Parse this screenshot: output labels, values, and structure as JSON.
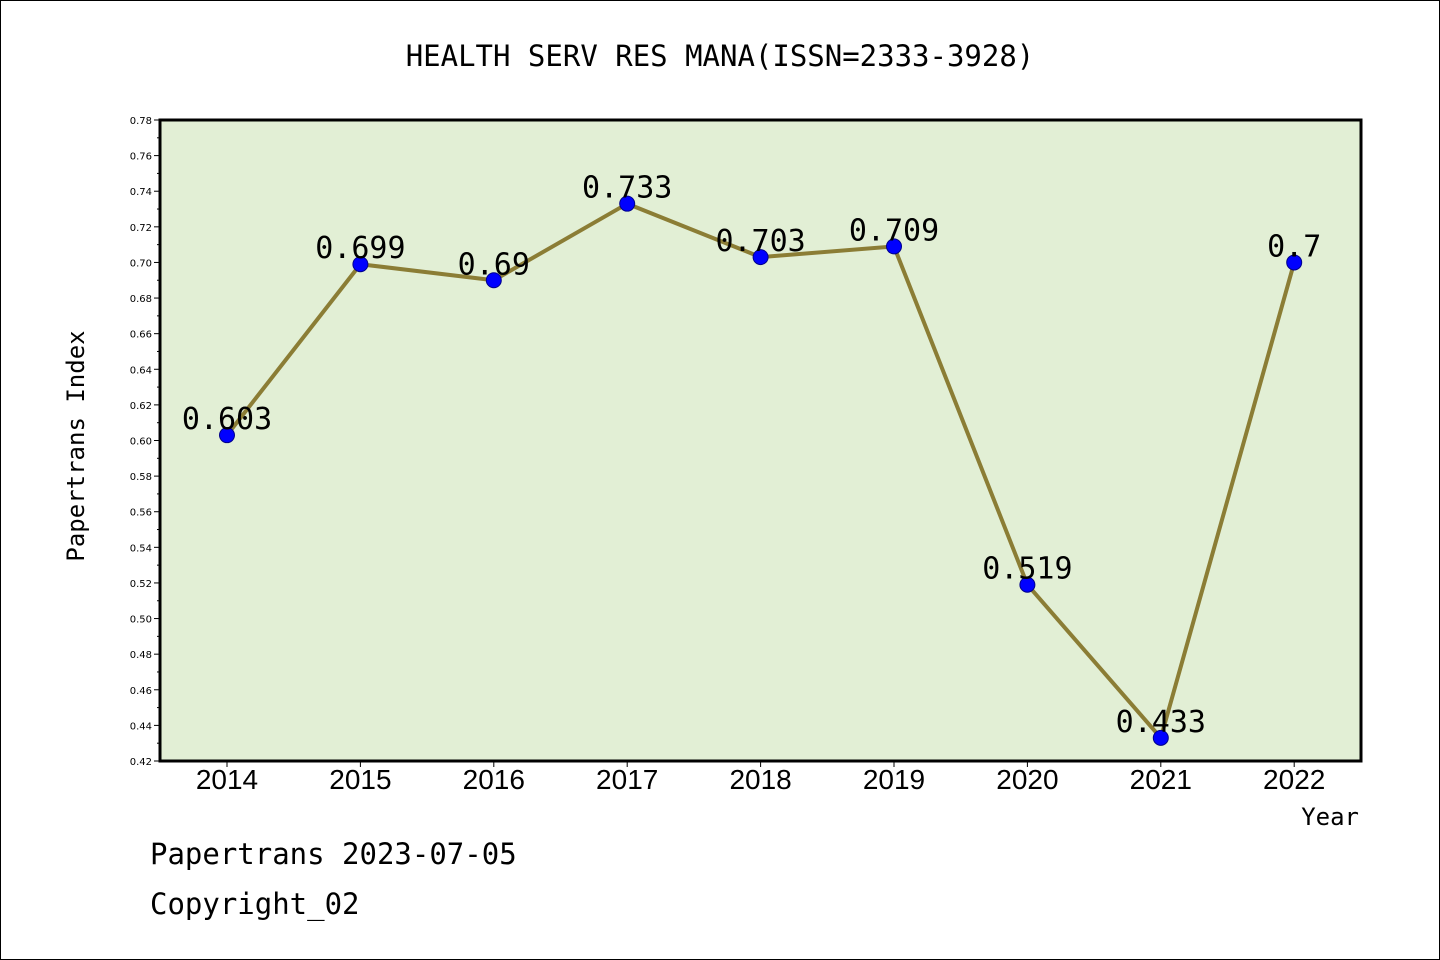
{
  "chart_data": {
    "type": "line",
    "title": "HEALTH SERV RES MANA(ISSN=2333-3928)",
    "xlabel": "Year",
    "ylabel": "Papertrans Index",
    "categories": [
      "2014",
      "2015",
      "2016",
      "2017",
      "2018",
      "2019",
      "2020",
      "2021",
      "2022"
    ],
    "series": [
      {
        "values": [
          0.603,
          0.699,
          0.69,
          0.733,
          0.703,
          0.709,
          0.519,
          0.433,
          0.7
        ],
        "data_labels": [
          "0.603",
          "0.699",
          "0.69",
          "0.733",
          "0.703",
          "0.709",
          "0.519",
          "0.433",
          "0.7"
        ]
      }
    ],
    "ylim": [
      0.42,
      0.78
    ],
    "yticks": [
      "0.42",
      "0.44",
      "0.46",
      "0.48",
      "0.50",
      "0.52",
      "0.54",
      "0.56",
      "0.58",
      "0.60",
      "0.62",
      "0.64",
      "0.66",
      "0.68",
      "0.70",
      "0.72",
      "0.74",
      "0.76",
      "0.78"
    ],
    "grid": false,
    "legend": "none",
    "colors": {
      "plot_background": "#e2efd5",
      "line": "#8b7d35",
      "marker": "#0000ff"
    }
  },
  "footer": {
    "date_line": "Papertrans 2023-07-05",
    "copyright": "Copyright_02"
  }
}
